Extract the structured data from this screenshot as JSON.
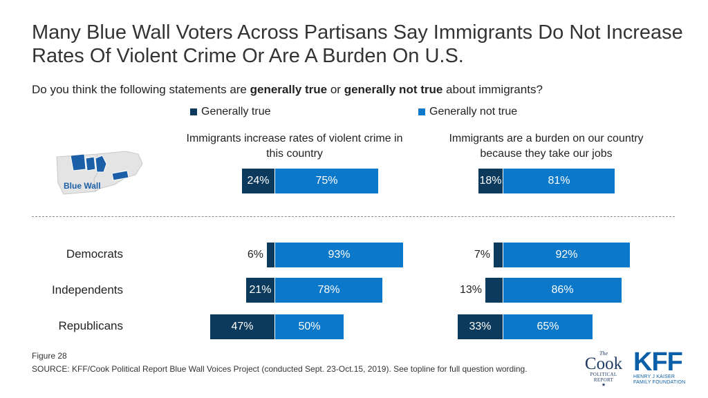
{
  "header": {
    "title": "Many Blue Wall Voters Across Partisans Say Immigrants Do Not Increase Rates Of Violent Crime Or Are A Burden On U.S.",
    "subtitle_pre": "Do you think the following statements are ",
    "subtitle_b1": "generally true",
    "subtitle_mid": " or ",
    "subtitle_b2": "generally not true",
    "subtitle_post": " about immigrants?"
  },
  "map": {
    "label": "Blue Wall"
  },
  "footer": {
    "figure": "Figure 28",
    "source": "SOURCE: KFF/Cook Political Report Blue Wall Voices Project (conducted Sept. 23-Oct.15, 2019). See topline for full question wording."
  },
  "logos": {
    "cook_the": "The",
    "cook_name": "Cook",
    "cook_line1": "POLITICAL",
    "cook_line2": "REPORT",
    "kff_name": "KFF",
    "kff_line1": "HENRY J KAISER",
    "kff_line2": "FAMILY FOUNDATION"
  },
  "chart_data": {
    "type": "bar",
    "orientation": "horizontal-diverging",
    "legend": [
      {
        "name": "Generally true",
        "color": "#0b3a5c"
      },
      {
        "name": "Generally not true",
        "color": "#0b78c9"
      }
    ],
    "panels": [
      {
        "title": "Immigrants increase rates of violent crime in this country",
        "rows": [
          {
            "label": "",
            "true": 24,
            "not_true": 75
          },
          {
            "label": "Democrats",
            "true": 6,
            "not_true": 93
          },
          {
            "label": "Independents",
            "true": 21,
            "not_true": 78
          },
          {
            "label": "Republicans",
            "true": 47,
            "not_true": 50
          }
        ]
      },
      {
        "title": "Immigrants are a burden on our country  because they take our jobs",
        "rows": [
          {
            "label": "",
            "true": 18,
            "not_true": 81
          },
          {
            "label": "Democrats",
            "true": 7,
            "not_true": 92
          },
          {
            "label": "Independents",
            "true": 13,
            "not_true": 86
          },
          {
            "label": "Republicans",
            "true": 33,
            "not_true": 65
          }
        ]
      }
    ]
  }
}
